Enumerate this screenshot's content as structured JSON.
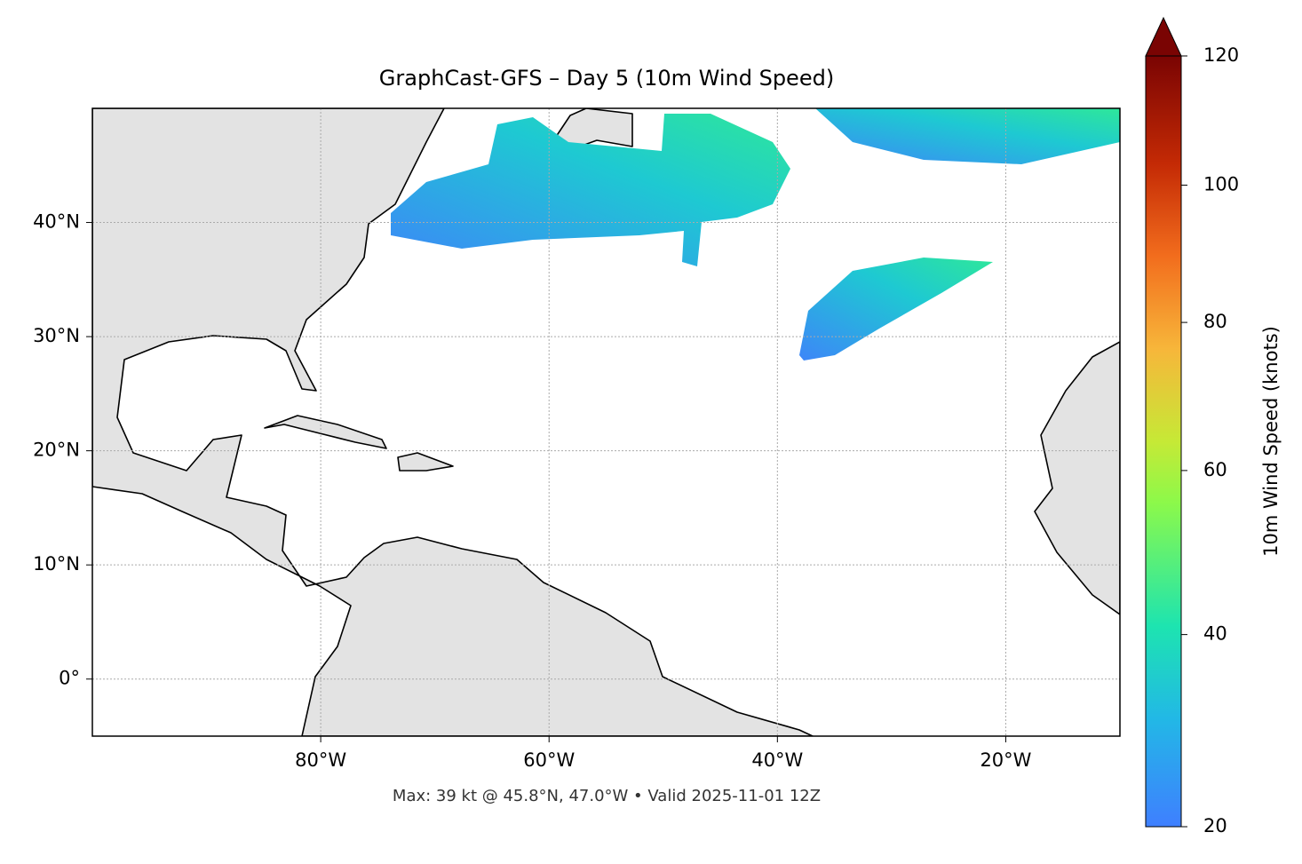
{
  "chart_data": {
    "type": "map",
    "title": "GraphCast-GFS – Day 5 (10m Wind Speed)",
    "footnote": "Max: 39 kt @ 45.8°N, 47.0°W • Valid 2025-11-01 12Z",
    "xlim": [
      -100,
      -10
    ],
    "ylim": [
      -5,
      50
    ],
    "xticks": [
      {
        "value": -80,
        "label": "80°W"
      },
      {
        "value": -60,
        "label": "60°W"
      },
      {
        "value": -40,
        "label": "40°W"
      },
      {
        "value": -20,
        "label": "20°W"
      }
    ],
    "yticks": [
      {
        "value": 0,
        "label": "0°"
      },
      {
        "value": 10,
        "label": "10°N"
      },
      {
        "value": 20,
        "label": "20°N"
      },
      {
        "value": 30,
        "label": "30°N"
      },
      {
        "value": 40,
        "label": "40°N"
      }
    ],
    "grid": true,
    "colorbar": {
      "label": "10m Wind Speed (knots)",
      "lim": [
        20,
        120
      ],
      "ticks": [
        20,
        40,
        60,
        80,
        100,
        120
      ]
    }
  }
}
